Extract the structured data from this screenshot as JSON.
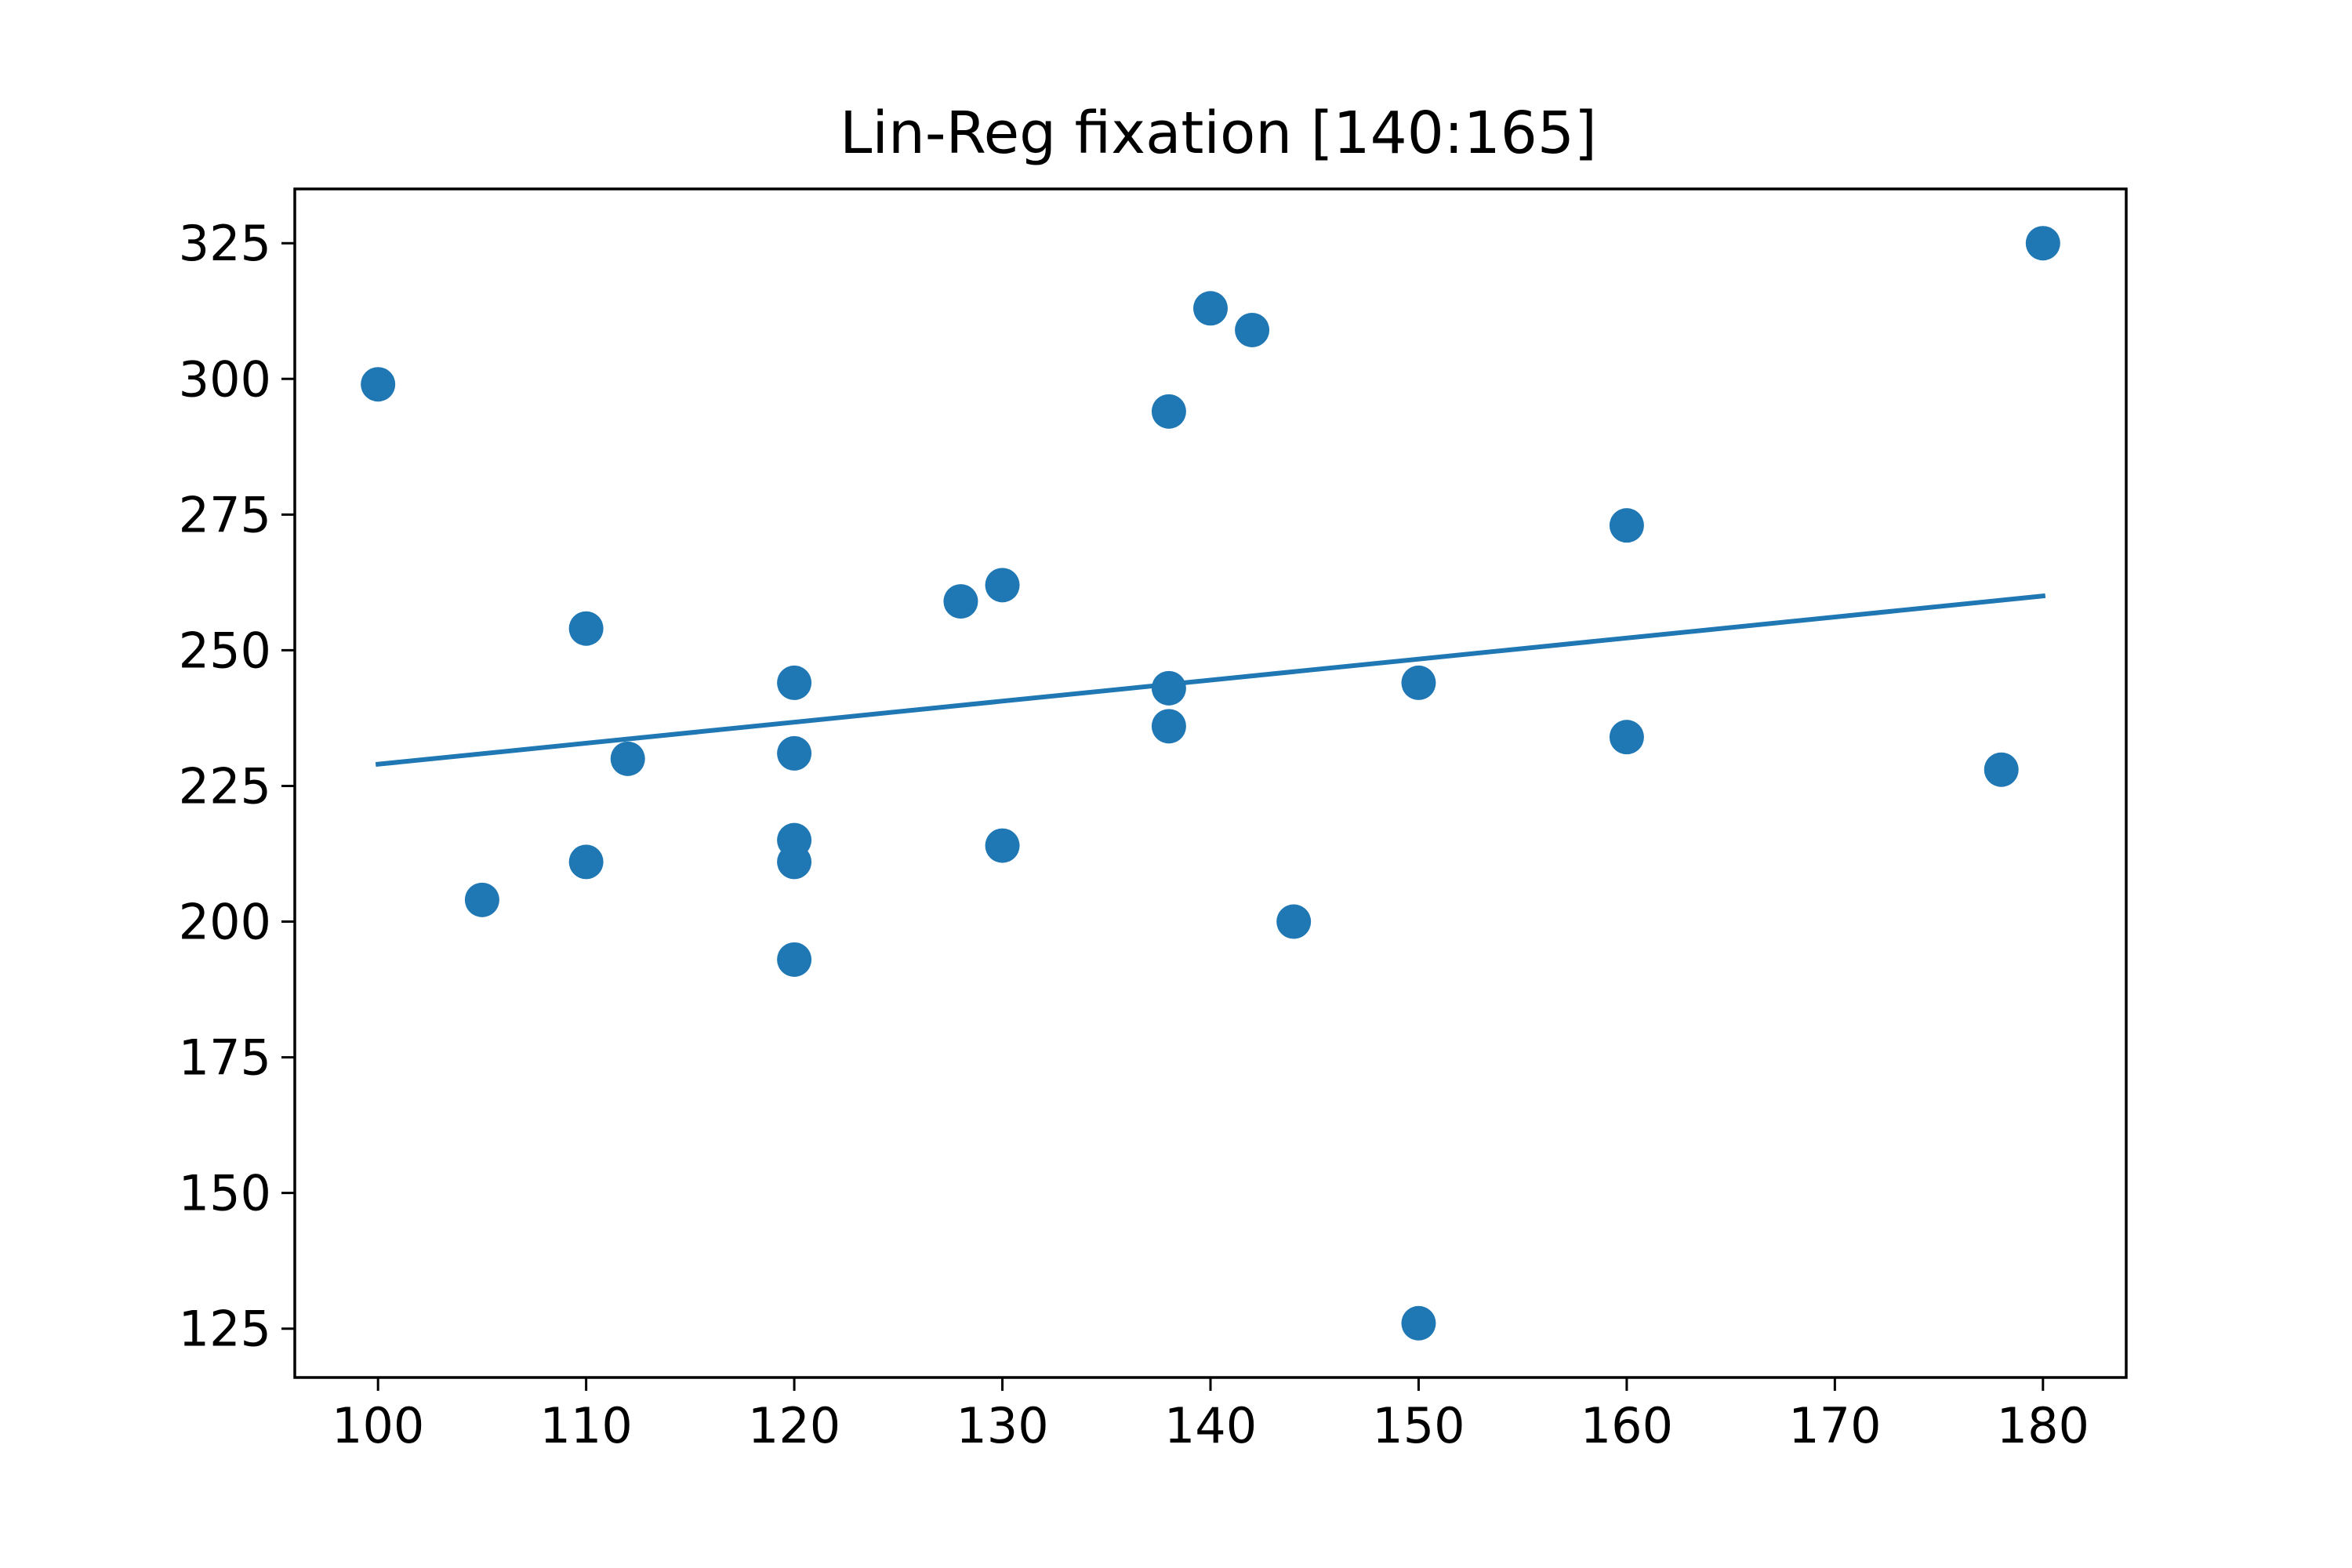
{
  "chart_data": {
    "type": "scatter",
    "title": "Lin-Reg fixation [140:165]",
    "xlabel": "",
    "ylabel": "",
    "xlim": [
      96,
      184
    ],
    "ylim": [
      116,
      335
    ],
    "xticks": [
      100,
      110,
      120,
      130,
      140,
      150,
      160,
      170,
      180
    ],
    "yticks": [
      125,
      150,
      175,
      200,
      225,
      250,
      275,
      300,
      325
    ],
    "grid": false,
    "legend": "none",
    "colors": {
      "points": "#1f77b4",
      "line": "#1f77b4",
      "axes": "#000000"
    },
    "points": [
      {
        "x": 100,
        "y": 299
      },
      {
        "x": 105,
        "y": 204
      },
      {
        "x": 110,
        "y": 254
      },
      {
        "x": 110,
        "y": 211
      },
      {
        "x": 112,
        "y": 230
      },
      {
        "x": 120,
        "y": 244
      },
      {
        "x": 120,
        "y": 231
      },
      {
        "x": 120,
        "y": 215
      },
      {
        "x": 120,
        "y": 211
      },
      {
        "x": 120,
        "y": 193
      },
      {
        "x": 128,
        "y": 259
      },
      {
        "x": 130,
        "y": 262
      },
      {
        "x": 130,
        "y": 214
      },
      {
        "x": 138,
        "y": 294
      },
      {
        "x": 138,
        "y": 243
      },
      {
        "x": 138,
        "y": 236
      },
      {
        "x": 140,
        "y": 313
      },
      {
        "x": 142,
        "y": 309
      },
      {
        "x": 144,
        "y": 200
      },
      {
        "x": 150,
        "y": 244
      },
      {
        "x": 150,
        "y": 126
      },
      {
        "x": 160,
        "y": 273
      },
      {
        "x": 160,
        "y": 234
      },
      {
        "x": 178,
        "y": 228
      },
      {
        "x": 180,
        "y": 325
      }
    ],
    "regression_line": {
      "x": [
        100,
        180
      ],
      "y": [
        229,
        260
      ]
    }
  }
}
